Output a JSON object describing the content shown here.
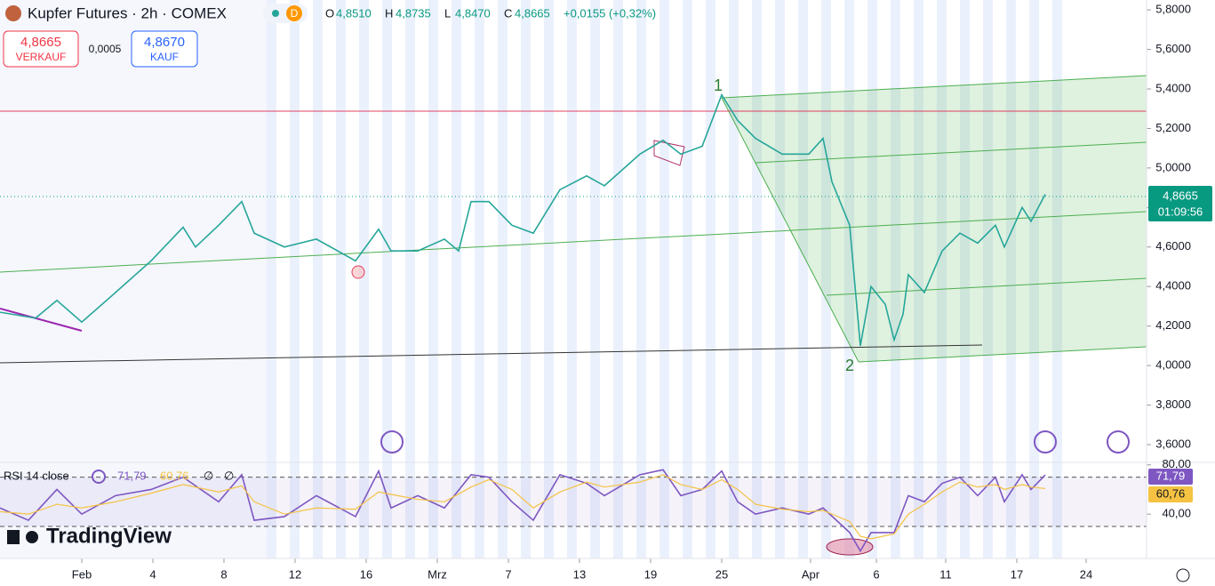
{
  "header": {
    "title": "Kupfer Futures · 2h · COMEX",
    "badge": "D",
    "ohlc": [
      {
        "key": "O",
        "value": "4,8510"
      },
      {
        "key": "H",
        "value": "4,8735"
      },
      {
        "key": "L",
        "value": "4,8470"
      },
      {
        "key": "C",
        "value": "4,8665"
      }
    ],
    "change": "+0,0155 (+0,32%)"
  },
  "trade": {
    "sell_price": "4,8665",
    "sell_label": "VERKAUF",
    "spread": "0,0005",
    "buy_price": "4,8670",
    "buy_label": "KAUF"
  },
  "last_price": {
    "price": "4,8665",
    "countdown": "01:09:56"
  },
  "annotations": [
    "1",
    "2"
  ],
  "logo": "TradingView",
  "rsi_header": {
    "title": "RSI 14 close",
    "rsi": "71,79",
    "ma": "60,76",
    "extra": [
      "∅",
      "∅"
    ]
  },
  "chart_data": [
    {
      "type": "line",
      "x": [
        -4.6,
        -2.6,
        -1.4,
        0,
        1.9,
        3.9,
        5.7,
        6.4,
        7.7,
        9,
        9.7,
        11.4,
        13.2,
        15.4,
        16.7,
        17.4,
        18.9,
        20.4,
        21.2,
        21.9,
        22.9,
        24.2,
        25.4,
        26.9,
        28.4,
        29.4,
        31.4,
        32.7,
        33.7,
        34.9,
        36,
        36.9,
        37.9,
        39.4,
        40.9,
        41.7,
        42.2,
        43.2,
        43.5,
        43.8,
        44.4,
        45.2,
        45.7,
        46.2,
        46.5,
        47.4,
        48.4,
        49.4,
        50.4,
        51.4,
        51.9,
        52.9,
        53.4,
        54.2
      ],
      "series": [
        {
          "color": "#26a69a",
          "values": [
            4.27,
            4.24,
            4.33,
            4.22,
            4.37,
            4.53,
            4.7,
            4.6,
            4.71,
            4.83,
            4.67,
            4.6,
            4.64,
            4.53,
            4.69,
            4.58,
            4.58,
            4.64,
            4.58,
            4.83,
            4.83,
            4.71,
            4.67,
            4.89,
            4.96,
            4.91,
            5.07,
            5.14,
            5.07,
            5.11,
            5.37,
            5.24,
            5.15,
            5.07,
            5.07,
            5.15,
            4.93,
            4.71,
            4.4,
            4.1,
            4.4,
            4.31,
            4.13,
            4.26,
            4.46,
            4.37,
            4.58,
            4.67,
            4.62,
            4.71,
            4.6,
            4.8,
            4.73,
            4.8665
          ]
        }
      ],
      "xlim": [
        -4.6,
        59.9
      ],
      "xticks": [
        {
          "value": 0,
          "label": "Feb"
        },
        4,
        8,
        12,
        16,
        {
          "value": 20,
          "label": "Mrz"
        },
        {
          "value": 24,
          "label": "7"
        },
        {
          "value": 28,
          "label": "13"
        },
        {
          "value": 32,
          "label": "19"
        },
        {
          "value": 36,
          "label": "25"
        },
        {
          "value": 41,
          "label": "Apr"
        },
        {
          "value": 44.7,
          "label": "6"
        },
        {
          "value": 48.6,
          "label": "11"
        },
        {
          "value": 52.6,
          "label": "17"
        },
        {
          "value": 56.5,
          "label": "24"
        }
      ],
      "ylim": [
        3.51,
        5.85
      ],
      "yticks": [
        {
          "value": 3.6,
          "label": "3,6000"
        },
        {
          "value": 3.8,
          "label": "3,8000"
        },
        {
          "value": 4.0,
          "label": "4,0000"
        },
        {
          "value": 4.2,
          "label": "4,2000"
        },
        {
          "value": 4.4,
          "label": "4,4000"
        },
        {
          "value": 4.6,
          "label": "4,6000"
        },
        {
          "value": 4.8,
          "label": "4,8000"
        },
        {
          "value": 5.0,
          "label": "5,0000"
        },
        {
          "value": 5.2,
          "label": "5,2000"
        },
        {
          "value": 5.4,
          "label": "5,4000"
        },
        {
          "value": 5.6,
          "label": "5,6000"
        },
        {
          "value": 5.8,
          "label": "5,8000"
        }
      ]
    },
    {
      "type": "line",
      "x": [
        -4.6,
        -3,
        -1.4,
        0,
        1.9,
        3.9,
        5.7,
        7.7,
        9,
        9.7,
        11.4,
        13.2,
        15.4,
        16.7,
        17.4,
        18.9,
        20.4,
        21.9,
        22.9,
        24.2,
        25.4,
        26.9,
        28.4,
        29.4,
        31.4,
        32.7,
        33.7,
        34.9,
        36,
        36.9,
        37.9,
        39.4,
        40.9,
        41.7,
        43.2,
        43.8,
        44.4,
        45.7,
        46.5,
        47.4,
        48.4,
        49.4,
        50.4,
        51.4,
        51.9,
        52.9,
        53.4,
        54.2
      ],
      "series": [
        {
          "color": "#7e57c2",
          "values": [
            45,
            35,
            60,
            40,
            55,
            60,
            70,
            50,
            72,
            35,
            38,
            55,
            38,
            75,
            45,
            55,
            45,
            72,
            70,
            50,
            35,
            72,
            65,
            55,
            72,
            76,
            55,
            60,
            75,
            50,
            40,
            45,
            40,
            45,
            25,
            10,
            25,
            25,
            55,
            50,
            65,
            70,
            55,
            70,
            50,
            72,
            60,
            71.79
          ]
        },
        {
          "color": "#f5c242",
          "values": [
            42,
            40,
            48,
            45,
            50,
            57,
            64,
            58,
            63,
            50,
            40,
            45,
            44,
            58,
            56,
            52,
            50,
            62,
            68,
            60,
            45,
            58,
            66,
            62,
            66,
            72,
            64,
            60,
            68,
            60,
            48,
            44,
            42,
            43,
            34,
            22,
            20,
            24,
            40,
            48,
            58,
            66,
            62,
            64,
            60,
            64,
            62,
            60.76
          ]
        }
      ],
      "xlim": [
        -4.6,
        59.9
      ],
      "ylim": [
        4,
        82
      ],
      "yticks": [
        {
          "value": 40,
          "label": "40,00"
        },
        {
          "value": 80,
          "label": "80,00"
        }
      ],
      "levels": [
        30,
        70
      ]
    }
  ]
}
